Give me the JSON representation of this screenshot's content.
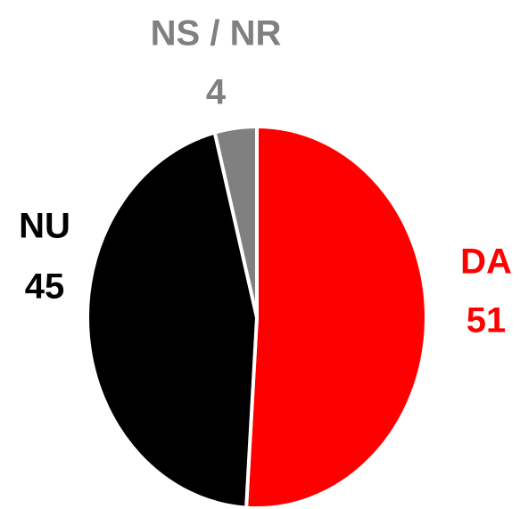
{
  "chart_data": {
    "type": "pie",
    "categories": [
      "DA",
      "NU",
      "NS / NR"
    ],
    "values": [
      51,
      45,
      4
    ],
    "colors": [
      "#ff0000",
      "#000000",
      "#808080"
    ]
  }
}
